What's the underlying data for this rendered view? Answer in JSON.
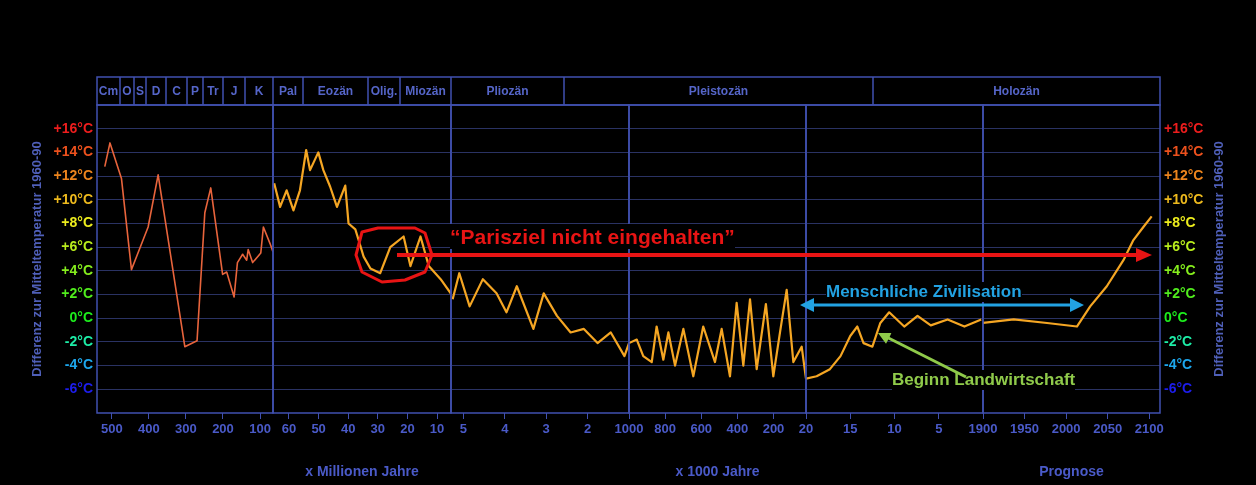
{
  "chart_data": [
    {
      "type": "line",
      "x": [
        519,
        505,
        474,
        447,
        402,
        375,
        303,
        270,
        249,
        233,
        201,
        190,
        170,
        161,
        147,
        136,
        132,
        120,
        98,
        91,
        73,
        65
      ],
      "series": [
        {
          "color": "#e8643c",
          "values": [
            12.8,
            14.8,
            11.8,
            4.1,
            7.7,
            12.1,
            -2.4,
            -1.9,
            8.9,
            11.0,
            3.7,
            3.9,
            1.8,
            4.7,
            5.4,
            4.9,
            5.8,
            4.7,
            5.5,
            7.7,
            6.3,
            5.6
          ]
        }
      ],
      "xlim": [
        540,
        65
      ],
      "xticks": [
        500,
        400,
        300,
        200,
        100
      ],
      "ylim": [
        -8,
        18
      ],
      "yticks": [
        {
          "value": -6,
          "label": "-6°C"
        },
        {
          "value": -4,
          "label": "-4°C"
        },
        {
          "value": -2,
          "label": "-2°C"
        },
        {
          "value": 0,
          "label": "0°C"
        },
        {
          "value": 2,
          "label": "+2°C"
        },
        {
          "value": 4,
          "label": "+4°C"
        },
        {
          "value": 6,
          "label": "+6°C"
        },
        {
          "value": 8,
          "label": "+8°C"
        },
        {
          "value": 10,
          "label": "+10°C"
        },
        {
          "value": 12,
          "label": "+12°C"
        },
        {
          "value": 14,
          "label": "+14°C"
        },
        {
          "value": 16,
          "label": "+16°C"
        }
      ],
      "ylabel": "Differenz zur Mitteltemperatur 1960-90",
      "grid": "y",
      "annotations": [
        "Cm",
        "O",
        "S",
        "D",
        "C",
        "P",
        "Tr",
        "J",
        "K"
      ]
    },
    {
      "type": "line",
      "x": [
        65,
        63,
        60.8,
        58.5,
        56.3,
        54.2,
        52.9,
        50.1,
        48.4,
        46.1,
        43.8,
        41,
        39.9,
        37.6,
        36.5,
        34.8,
        32.5,
        29.2,
        25.8,
        21.3,
        19,
        15.6,
        12.8,
        8.8,
        5.4
      ],
      "series": [
        {
          "color": "#f5a623",
          "values": [
            11.4,
            9.4,
            10.8,
            9.1,
            10.8,
            14.2,
            12.5,
            14.0,
            12.5,
            11.1,
            9.4,
            11.2,
            8.0,
            7.5,
            6.6,
            5.2,
            4.2,
            3.8,
            6.0,
            6.9,
            4.4,
            6.9,
            4.4,
            3.3,
            2.1
          ]
        }
      ],
      "xlim": [
        65.4,
        5.3
      ],
      "xticks": [
        60,
        50,
        40,
        30,
        20,
        10
      ],
      "ylim": [
        -8,
        18
      ],
      "yticks": [
        -6,
        -4,
        -2,
        0,
        2,
        4,
        6,
        8,
        10,
        12,
        14,
        16
      ],
      "grid": "y",
      "tick_labels": "x",
      "xlabel": "x Millionen Jahre",
      "annotations": [
        "Pal",
        "Eozän",
        "Olig.",
        "Miozän"
      ]
    },
    {
      "type": "line",
      "x": [
        5.26,
        5.1,
        4.85,
        4.53,
        4.2,
        3.96,
        3.71,
        3.31,
        3.06,
        2.74,
        2.41,
        2.09,
        1.76,
        1.44,
        1.11,
        1.0
      ],
      "series": [
        {
          "color": "#f5a623",
          "values": [
            1.6,
            3.8,
            1.0,
            3.3,
            2.1,
            0.5,
            2.7,
            -0.9,
            2.1,
            0.2,
            -1.2,
            -0.9,
            -2.1,
            -1.2,
            -3.2,
            -2.1
          ]
        }
      ],
      "xlim": [
        5.3,
        1
      ],
      "xticks": [
        5,
        4,
        3,
        2
      ],
      "ylim": [
        -8,
        18
      ],
      "yticks": [
        -6,
        -4,
        -2,
        0,
        2,
        4,
        6,
        8,
        10,
        12,
        14,
        16
      ],
      "grid": "y",
      "tick_labels": "x",
      "annotations": [
        "Pliozän"
      ]
    },
    {
      "type": "line",
      "x": [
        1000,
        957,
        921,
        874,
        847,
        810,
        782,
        745,
        699,
        644,
        589,
        524,
        487,
        441,
        404,
        367,
        330,
        293,
        242,
        201,
        164,
        127,
        90,
        44,
        20
      ],
      "series": [
        {
          "color": "#f5a623",
          "values": [
            -2.1,
            -1.8,
            -3.2,
            -3.7,
            -0.7,
            -3.5,
            -1.2,
            -4.0,
            -0.9,
            -4.9,
            -0.7,
            -3.7,
            -0.9,
            -4.9,
            1.3,
            -4.0,
            1.6,
            -4.3,
            1.2,
            -4.9,
            -1.2,
            2.4,
            -3.7,
            -2.4,
            -5.1
          ]
        }
      ],
      "xlim": [
        1000,
        20
      ],
      "xticks": [
        1000,
        800,
        600,
        400,
        200
      ],
      "ylim": [
        -8,
        18
      ],
      "yticks": [
        -6,
        -4,
        -2,
        0,
        2,
        4,
        6,
        8,
        10,
        12,
        14,
        16
      ],
      "grid": "y",
      "tick_labels": "x",
      "xlabel": "x 1000 Jahre",
      "annotations": [
        "Pleistozän",
        "“Parisziel nicht eingehalten”"
      ]
    },
    {
      "type": "line",
      "x": [
        20,
        18.8,
        17.3,
        16.1,
        15.0,
        14.2,
        13.5,
        12.5,
        11.6,
        10.6,
        8.9,
        7.4,
        5.9,
        4.0,
        2.1,
        0.2
      ],
      "series": [
        {
          "color": "#f5a623",
          "values": [
            -5.1,
            -4.9,
            -4.3,
            -3.2,
            -1.5,
            -0.7,
            -2.1,
            -2.4,
            -0.4,
            0.5,
            -0.7,
            0.2,
            -0.6,
            -0.1,
            -0.7,
            -0.1
          ]
        }
      ],
      "xlim": [
        20,
        0
      ],
      "xticks": [
        20,
        15,
        10,
        5
      ],
      "ylim": [
        -8,
        18
      ],
      "yticks": [
        -6,
        -4,
        -2,
        0,
        2,
        4,
        6,
        8,
        10,
        12,
        14,
        16
      ],
      "grid": "y",
      "tick_labels": "x",
      "annotations": [
        "Menschliche Zivilisation",
        "Beginn Landwirtschaft"
      ]
    },
    {
      "type": "line",
      "x": [
        1900,
        1937,
        1977,
        2013,
        2029,
        2049,
        2069,
        2081,
        2093,
        2103
      ],
      "series": [
        {
          "color": "#f5a623",
          "axis": "y2",
          "values": [
            -0.4,
            -0.1,
            -0.4,
            -0.7,
            1.0,
            2.7,
            4.9,
            6.6,
            7.7,
            8.6
          ]
        }
      ],
      "xlim": [
        1900,
        2113
      ],
      "xticks": [
        1900,
        1950,
        2000,
        2050,
        2100
      ],
      "y2lim": [
        -8,
        18
      ],
      "y2ticks": [
        {
          "value": -6,
          "label": "-6°C"
        },
        {
          "value": -4,
          "label": "-4°C"
        },
        {
          "value": -2,
          "label": "-2°C"
        },
        {
          "value": 0,
          "label": "0°C"
        },
        {
          "value": 2,
          "label": "+2°C"
        },
        {
          "value": 4,
          "label": "+4°C"
        },
        {
          "value": 6,
          "label": "+6°C"
        },
        {
          "value": 8,
          "label": "+8°C"
        },
        {
          "value": 10,
          "label": "+10°C"
        },
        {
          "value": 12,
          "label": "+12°C"
        },
        {
          "value": 14,
          "label": "+14°C"
        },
        {
          "value": 16,
          "label": "+16°C"
        }
      ],
      "y2label": "Differenz zur Mitteltemperatur 1960-90",
      "grid": "y",
      "xlabel": "Prognose",
      "annotations": [
        "Holozän"
      ]
    }
  ]
}
